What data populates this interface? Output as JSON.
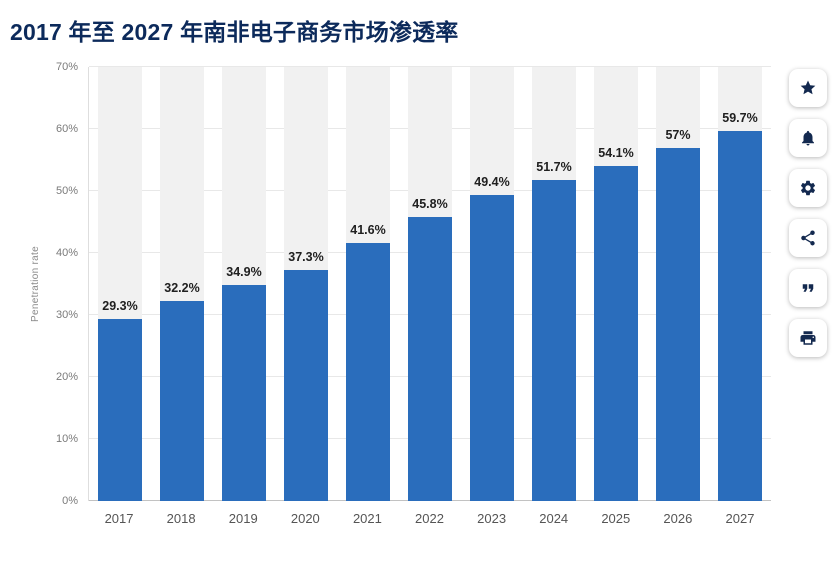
{
  "page": {
    "title": "2017 年至 2027 年南非电子商务市场渗透率"
  },
  "chart_data": {
    "type": "bar",
    "title": "2017 年至 2027 年南非电子商务市场渗透率",
    "categories": [
      "2017",
      "2018",
      "2019",
      "2020",
      "2021",
      "2022",
      "2023",
      "2024",
      "2025",
      "2026",
      "2027"
    ],
    "values": [
      29.3,
      32.2,
      34.9,
      37.3,
      41.6,
      45.8,
      49.4,
      51.7,
      54.1,
      57,
      59.7
    ],
    "data_labels": [
      "29.3%",
      "32.2%",
      "34.9%",
      "37.3%",
      "41.6%",
      "45.8%",
      "49.4%",
      "51.7%",
      "54.1%",
      "57%",
      "59.7%"
    ],
    "xlabel": "",
    "ylabel": "Penetration rate",
    "ylim": [
      0,
      70
    ],
    "yticks": [
      "0%",
      "10%",
      "20%",
      "30%",
      "40%",
      "50%",
      "60%",
      "70%"
    ],
    "grid": true,
    "legend": null,
    "bar_color": "#2a6dbc",
    "band_color": "#f1f1f1",
    "title_color": "#0c2a5b"
  },
  "toolbar": {
    "icons": [
      "star",
      "bell",
      "gear",
      "share",
      "quote",
      "print"
    ]
  }
}
